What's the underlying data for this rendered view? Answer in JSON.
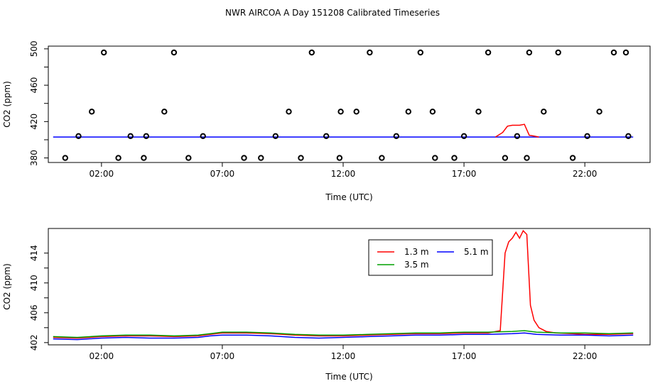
{
  "title": "NWR AIRCOA A  Day 151208  Calibrated Timeseries",
  "chart_data": [
    {
      "type": "scatter",
      "xlabel": "Time (UTC)",
      "ylabel": "CO2 (ppm)",
      "x_unit": "hours UTC",
      "x_ticks": [
        {
          "value": 2,
          "label": "02:00"
        },
        {
          "value": 7,
          "label": "07:00"
        },
        {
          "value": 12,
          "label": "12:00"
        },
        {
          "value": 17,
          "label": "17:00"
        },
        {
          "value": 22,
          "label": "22:00"
        }
      ],
      "y_ticks": [
        380,
        420,
        460,
        500
      ],
      "xlim": [
        -0.2,
        24.7
      ],
      "ylim": [
        375,
        503
      ],
      "series": [
        {
          "style": "line",
          "color": "#0000ff",
          "x": [
            0.0,
            3.0,
            6.0,
            9.0,
            12.0,
            15.0,
            18.0,
            18.5,
            18.7,
            19.0,
            19.5,
            19.7,
            19.9,
            20.1,
            21.0,
            24.0
          ],
          "y": [
            403.0,
            403.0,
            403.0,
            403.0,
            403.0,
            403.0,
            403.0,
            403.0,
            403.0,
            403.0,
            403.0,
            403.0,
            403.0,
            403.0,
            403.0,
            403.0
          ]
        },
        {
          "style": "line",
          "color": "#ff0000",
          "x": [
            18.3,
            18.6,
            18.8,
            19.0,
            19.3,
            19.5,
            19.7,
            19.9,
            20.1
          ],
          "y": [
            403.0,
            408.0,
            415.0,
            416.0,
            416.0,
            417.0,
            405.0,
            404.0,
            403.0
          ]
        },
        {
          "style": "points",
          "color": "#000000",
          "x": [
            0.5,
            1.05,
            1.6,
            2.1,
            2.7,
            3.2,
            3.75,
            3.85,
            4.6,
            5.0,
            5.6,
            6.2,
            7.9,
            8.6,
            9.2,
            9.75,
            10.25,
            10.7,
            11.3,
            11.85,
            11.9,
            12.55,
            13.1,
            13.6,
            14.2,
            14.7,
            15.2,
            15.7,
            15.8,
            16.6,
            17.0,
            17.6,
            18.0,
            18.7,
            19.2,
            19.6,
            19.7,
            20.3,
            20.9,
            21.5,
            22.1,
            22.6,
            23.2,
            23.7,
            23.8
          ],
          "y": [
            380,
            404,
            431,
            496,
            380,
            404,
            380,
            404,
            431,
            496,
            380,
            404,
            380,
            380,
            404,
            431,
            380,
            496,
            404,
            380,
            431,
            431,
            496,
            380,
            404,
            431,
            496,
            431,
            380,
            380,
            404,
            431,
            496,
            380,
            404,
            380,
            496,
            431,
            496,
            380,
            404,
            431,
            496,
            496,
            404
          ]
        }
      ]
    },
    {
      "type": "line",
      "xlabel": "Time (UTC)",
      "ylabel": "CO2 (ppm)",
      "x_unit": "hours UTC",
      "x_ticks": [
        {
          "value": 2,
          "label": "02:00"
        },
        {
          "value": 7,
          "label": "07:00"
        },
        {
          "value": 12,
          "label": "12:00"
        },
        {
          "value": 17,
          "label": "17:00"
        },
        {
          "value": 22,
          "label": "22:00"
        }
      ],
      "y_ticks": [
        402,
        406,
        410,
        414
      ],
      "xlim": [
        -0.2,
        24.7
      ],
      "ylim": [
        401.7,
        417.3
      ],
      "legend": "top-right",
      "series": [
        {
          "name": "1.3 m",
          "color": "#ff0000",
          "x": [
            0.0,
            1.0,
            2.0,
            3.0,
            4.0,
            5.0,
            6.0,
            6.5,
            7.0,
            8.0,
            9.0,
            10.0,
            11.0,
            12.0,
            13.0,
            14.0,
            15.0,
            16.0,
            17.0,
            18.0,
            18.5,
            18.7,
            18.85,
            19.0,
            19.15,
            19.3,
            19.45,
            19.6,
            19.75,
            19.9,
            20.1,
            20.4,
            20.8,
            21.5,
            22.0,
            23.0,
            24.0
          ],
          "y": [
            402.7,
            402.6,
            402.8,
            402.9,
            402.9,
            402.8,
            402.9,
            403.1,
            403.3,
            403.3,
            403.2,
            403.0,
            402.9,
            402.9,
            403.0,
            403.1,
            403.2,
            403.2,
            403.3,
            403.3,
            403.6,
            414.0,
            415.5,
            416.0,
            416.8,
            416.0,
            417.0,
            416.5,
            407.0,
            405.0,
            404.0,
            403.5,
            403.3,
            403.2,
            403.1,
            403.1,
            403.2
          ]
        },
        {
          "name": "3.5 m",
          "color": "#00a000",
          "x": [
            0.0,
            1.0,
            2.0,
            3.0,
            4.0,
            5.0,
            6.0,
            6.5,
            7.0,
            8.0,
            9.0,
            10.0,
            11.0,
            12.0,
            13.0,
            14.0,
            15.0,
            16.0,
            17.0,
            18.0,
            19.0,
            19.5,
            20.0,
            21.0,
            22.0,
            23.0,
            24.0
          ],
          "y": [
            402.8,
            402.7,
            402.9,
            403.0,
            403.0,
            402.9,
            403.0,
            403.2,
            403.4,
            403.4,
            403.3,
            403.1,
            403.0,
            403.0,
            403.1,
            403.2,
            403.3,
            403.3,
            403.4,
            403.4,
            403.5,
            403.6,
            403.4,
            403.3,
            403.3,
            403.2,
            403.3
          ]
        },
        {
          "name": "5.1 m",
          "color": "#0000ff",
          "x": [
            0.0,
            1.0,
            2.0,
            3.0,
            4.0,
            5.0,
            6.0,
            6.5,
            7.0,
            8.0,
            9.0,
            10.0,
            11.0,
            12.0,
            13.0,
            14.0,
            15.0,
            16.0,
            17.0,
            18.0,
            19.0,
            19.5,
            20.0,
            21.0,
            22.0,
            23.0,
            24.0
          ],
          "y": [
            402.5,
            402.4,
            402.6,
            402.7,
            402.6,
            402.6,
            402.7,
            402.9,
            403.0,
            403.0,
            402.9,
            402.7,
            402.6,
            402.7,
            402.8,
            402.9,
            403.0,
            403.0,
            403.1,
            403.1,
            403.2,
            403.3,
            403.1,
            403.0,
            403.0,
            402.9,
            403.0
          ]
        }
      ]
    }
  ]
}
